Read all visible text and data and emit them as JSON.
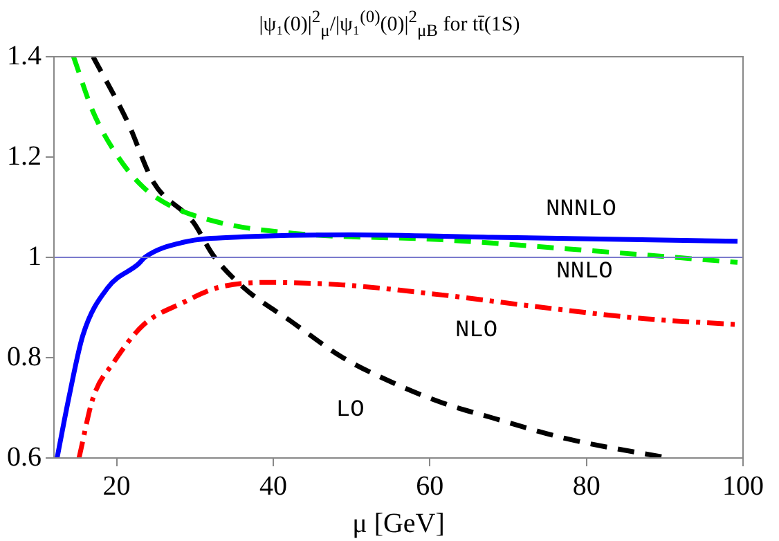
{
  "chart_data": {
    "type": "line",
    "title": "|ψ₁(0)|$^{2}$$_{μ}$/|ψ₁$^{(0)}$(0)|$^{2}$$_{μB}$ for tt̄(1S)",
    "xlabel": "μ [GeV]",
    "xlim": [
      12,
      100
    ],
    "xticks": [
      20,
      40,
      60,
      80,
      100
    ],
    "ylim": [
      0.6,
      1.4
    ],
    "yticks": [
      0.6,
      0.8,
      1,
      1.2,
      1.4
    ],
    "grid": false,
    "legend": false,
    "marker": "none",
    "series": [
      {
        "name": "NNNLO",
        "color": "#0000ff",
        "line_style": "solid",
        "x": [
          12.4,
          13.9,
          15.7,
          18.9,
          22.8,
          23.6,
          28.5,
          36.2,
          50,
          68,
          99.3
        ],
        "values": [
          0.6,
          0.72,
          0.845,
          0.94,
          0.987,
          1.0,
          1.03,
          1.041,
          1.045,
          1.04,
          1.032
        ]
      },
      {
        "name": "NNLO",
        "color": "#00ee00",
        "line_style": "dashed",
        "x": [
          14.5,
          17,
          20.2,
          23.4,
          26.6,
          33,
          42.5,
          61.6,
          80.8,
          99.3
        ],
        "values": [
          1.4,
          1.29,
          1.2,
          1.14,
          1.105,
          1.07,
          1.048,
          1.035,
          1.013,
          0.99
        ]
      },
      {
        "name": "LO",
        "color": "#000000",
        "line_style": "dashed",
        "x": [
          17,
          21.4,
          24.7,
          29.8,
          32.3,
          36.2,
          42.5,
          48.9,
          55.3,
          61.6,
          68,
          77.6,
          90.4
        ],
        "values": [
          1.4,
          1.27,
          1.15,
          1.07,
          1.005,
          0.94,
          0.87,
          0.8,
          0.75,
          0.71,
          0.68,
          0.638,
          0.6
        ]
      },
      {
        "name": "NLO",
        "color": "#ff0000",
        "line_style": "dashdot",
        "x": [
          15.2,
          17,
          19.6,
          23.4,
          28.5,
          33,
          39.3,
          48.9,
          61.6,
          74.5,
          87.2,
          99.3
        ],
        "values": [
          0.6,
          0.72,
          0.79,
          0.865,
          0.91,
          0.94,
          0.95,
          0.945,
          0.925,
          0.9,
          0.878,
          0.866
        ]
      }
    ],
    "ref_lines": [
      {
        "axis": "y",
        "value": 1,
        "color": "#7a7acc"
      }
    ]
  }
}
